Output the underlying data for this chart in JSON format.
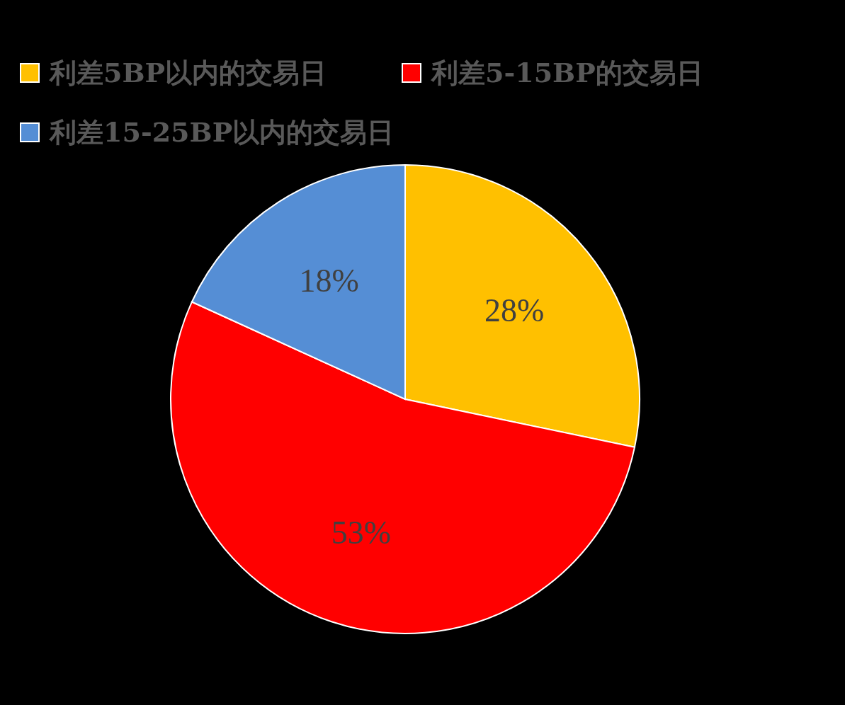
{
  "chart_data": {
    "type": "pie",
    "categories": [
      "利差5BP以内的交易日",
      "利差5-15BP的交易日",
      "利差15-25BP以内的交易日"
    ],
    "values": [
      28,
      53,
      18
    ],
    "colors": [
      "#ffc000",
      "#ff0000",
      "#558ed5"
    ],
    "value_labels": [
      "28%",
      "53%",
      "18%"
    ],
    "legend": "top"
  }
}
